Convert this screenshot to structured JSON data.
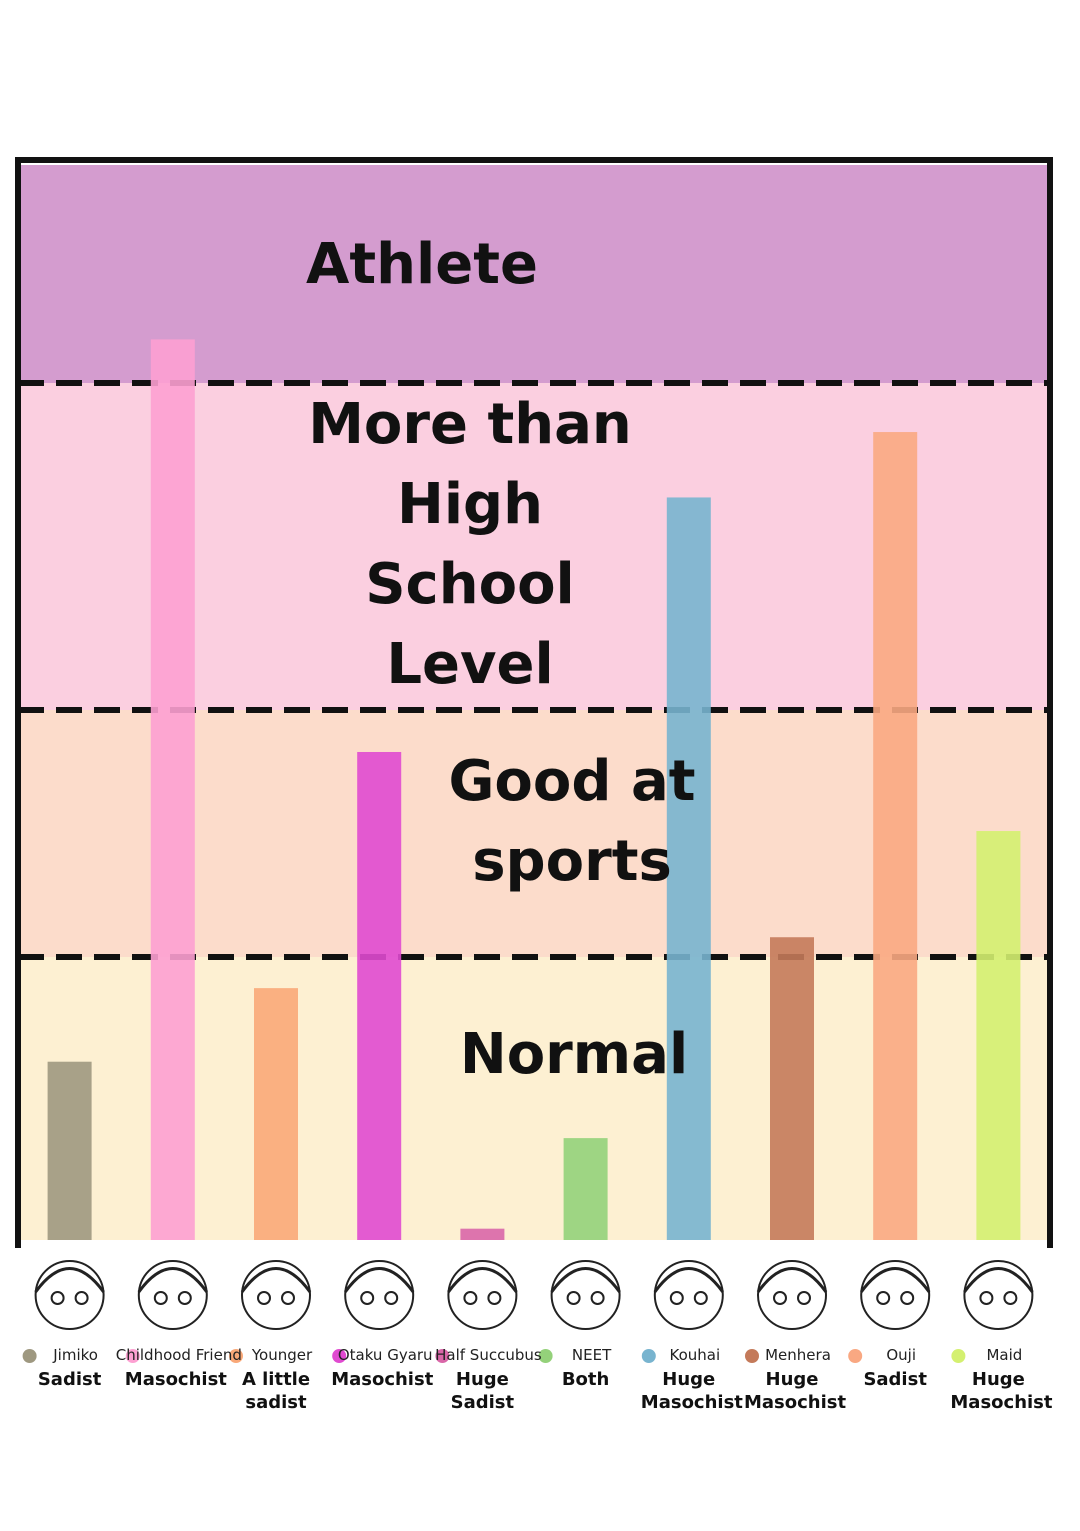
{
  "chart_data": {
    "type": "bar",
    "bands": [
      {
        "label": "Normal",
        "from": 0,
        "to": 1,
        "color": "#fdf0d2"
      },
      {
        "label": "Good at sports",
        "from": 1,
        "to": 2,
        "color": "#fcdccb"
      },
      {
        "label": "More than High School Level",
        "from": 2,
        "to": 3,
        "color": "#fbcfe0"
      },
      {
        "label": "Athlete",
        "from": 3,
        "to": 4,
        "color": "#d49ccf"
      }
    ],
    "ylim": [
      0,
      4
    ],
    "categories": [
      "Jimiko",
      "Childhood Friend",
      "Younger",
      "Otaku Gyaru",
      "Half Succubus",
      "NEET",
      "Kouhai",
      "Menhera",
      "Ouji",
      "Maid"
    ],
    "traits": [
      "Sadist",
      "Masochist",
      "A little sadist",
      "Masochist",
      "Huge Sadist",
      "Both",
      "Huge Masochist",
      "Huge Masochist",
      "Sadist",
      "Huge Masochist"
    ],
    "values": [
      0.63,
      3.2,
      0.89,
      1.83,
      0.04,
      0.36,
      2.65,
      1.08,
      2.85,
      1.51
    ],
    "colors": [
      "#9e9880",
      "#fda0d2",
      "#f9a878",
      "#e04ad0",
      "#d966a8",
      "#94d17a",
      "#78b4cf",
      "#c47a5a",
      "#f9a882",
      "#d4f070"
    ]
  }
}
